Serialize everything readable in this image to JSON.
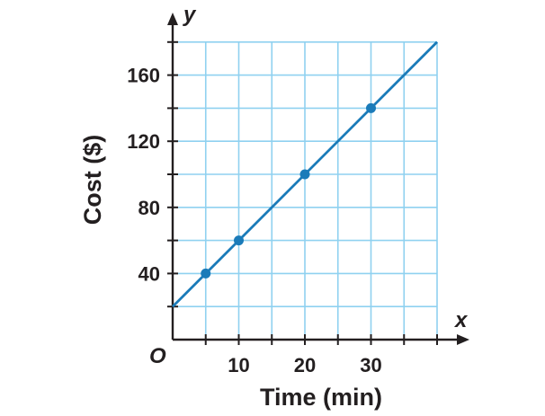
{
  "chart_data": {
    "type": "line",
    "title": "",
    "xlabel": "Time (min)",
    "ylabel": "Cost ($)",
    "x_axis_var": "x",
    "y_axis_var": "y",
    "origin_label": "O",
    "xlim": [
      0,
      40
    ],
    "ylim": [
      0,
      180
    ],
    "x_grid_step": 5,
    "y_grid_step": 20,
    "x_ticks": [
      10,
      20,
      30
    ],
    "x_tick_labels": [
      "10",
      "20",
      "30"
    ],
    "y_ticks": [
      40,
      80,
      120,
      160
    ],
    "y_tick_labels": [
      "40",
      "80",
      "120",
      "160"
    ],
    "grid": true,
    "line": {
      "x_start": 0,
      "y_start": 20,
      "x_end": 40,
      "y_end": 180
    },
    "points": [
      {
        "x": 5,
        "y": 40
      },
      {
        "x": 10,
        "y": 60
      },
      {
        "x": 20,
        "y": 100
      },
      {
        "x": 30,
        "y": 140
      }
    ],
    "colors": {
      "grid": "#8fd1f0",
      "line": "#1a7bb9",
      "axis": "#231f20",
      "text": "#231f20"
    }
  }
}
